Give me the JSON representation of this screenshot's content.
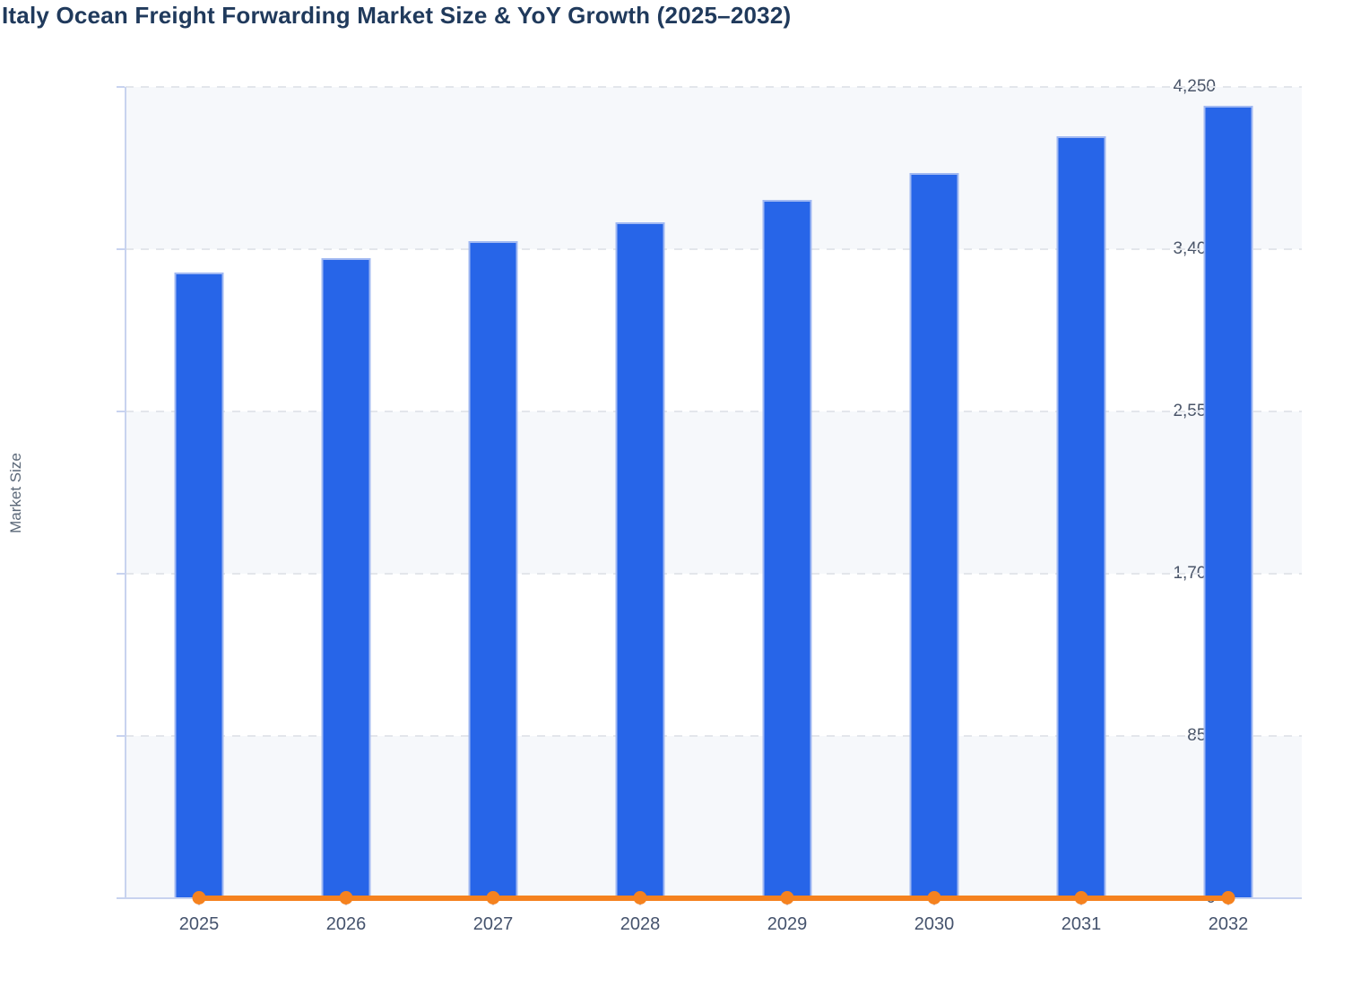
{
  "chart": {
    "title": "Italy Ocean Freight Forwarding Market Size & YoY Growth (2025–2032)",
    "y_axis_title": "Market Size"
  },
  "colors": {
    "bar_blue": "#2765e8",
    "line_orange": "#f5821f",
    "title_navy": "#203a5c"
  },
  "chart_data": {
    "type": "bar",
    "title": "Italy Ocean Freight Forwarding Market Size & YoY Growth (2025–2032)",
    "categories": [
      "2025",
      "2026",
      "2027",
      "2028",
      "2029",
      "2030",
      "2031",
      "2032"
    ],
    "series": [
      {
        "name": "Market Size",
        "type": "bar",
        "color": "#2765e8",
        "values": [
          3280,
          3355,
          3440,
          3540,
          3660,
          3800,
          3990,
          4150
        ]
      },
      {
        "name": "YoY Growth",
        "type": "line",
        "color": "#f5821f",
        "values": [
          0,
          0,
          0,
          0,
          0,
          0,
          0,
          0
        ],
        "render_note": "flat line with circular markers at the zero baseline of the Market Size axis"
      }
    ],
    "xlabel": "",
    "ylabel": "Market Size",
    "ylim": [
      0,
      4250
    ],
    "yticks": [
      0,
      850,
      1700,
      2550,
      3400,
      4250
    ],
    "ytick_labels": [
      "0",
      "850",
      "1,700",
      "2,550",
      "3,400",
      "4,250"
    ],
    "grid": "horizontal dashed gridlines with alternating light background bands",
    "legend": "none"
  }
}
